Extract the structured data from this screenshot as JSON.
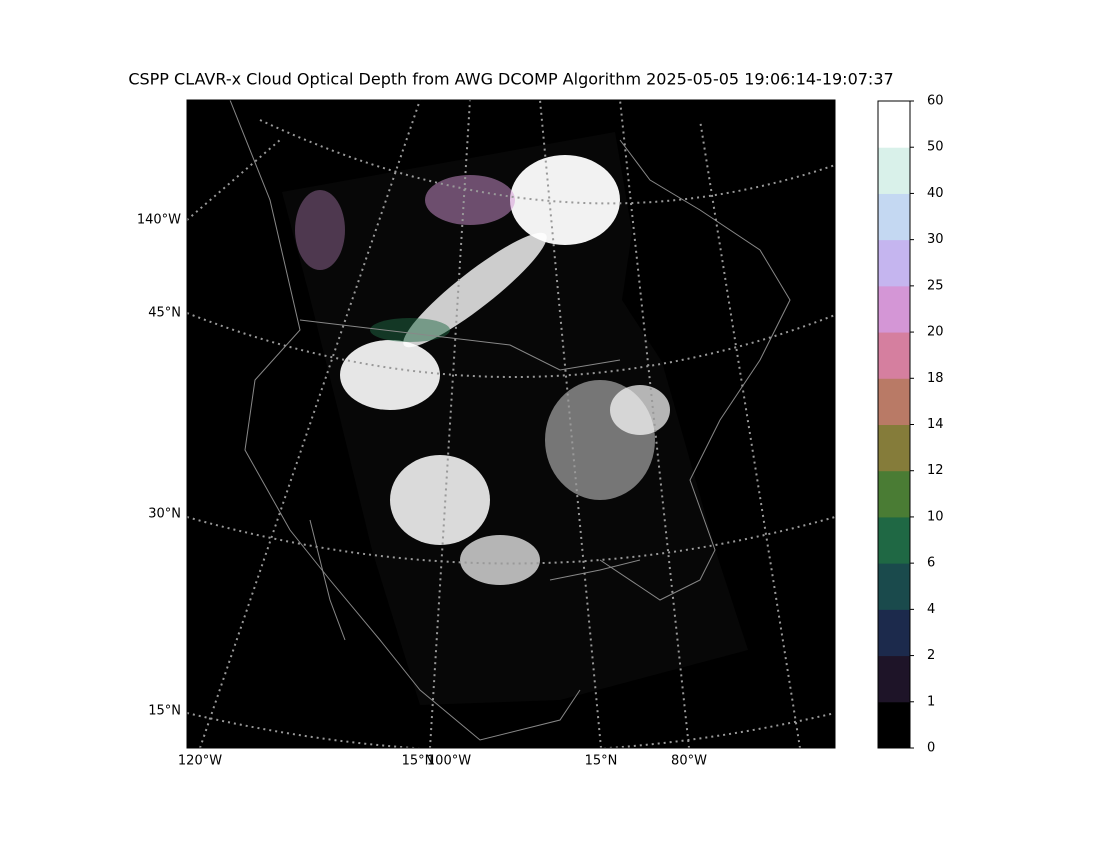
{
  "title": "CSPP CLAVR-x Cloud Optical Depth from AWG DCOMP Algorithm 2025-05-05 19:06:14-19:07:37",
  "left_labels": [
    "140°W",
    "45°N",
    "30°N",
    "15°N"
  ],
  "bottom_labels": [
    "120°W",
    "15°N",
    "100°W",
    "15°N",
    "80°W"
  ],
  "colorbar": {
    "ticks": [
      0,
      1,
      2,
      4,
      6,
      10,
      12,
      14,
      18,
      20,
      25,
      30,
      40,
      50,
      60
    ],
    "colors": [
      "#000000",
      "#1e1428",
      "#1c2a4c",
      "#1a4a4c",
      "#1f6844",
      "#4a7c34",
      "#857c3a",
      "#b97a66",
      "#d57f9f",
      "#d496d6",
      "#c5b5ef",
      "#c4d8f2",
      "#d9f1ea",
      "#ffffff"
    ]
  }
}
